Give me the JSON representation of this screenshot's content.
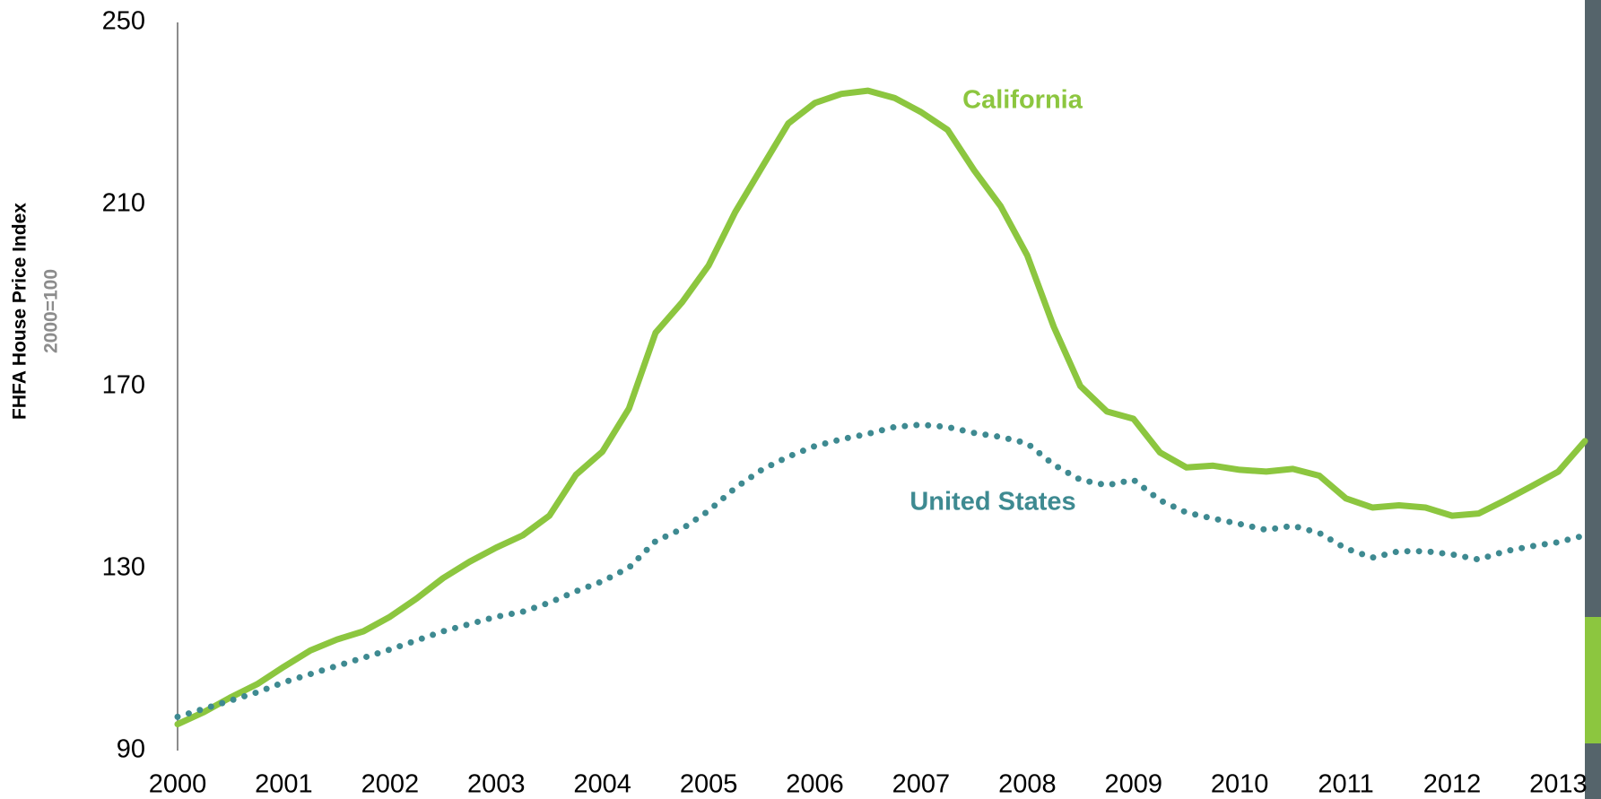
{
  "chart_data": {
    "type": "line",
    "y_label": "FHFA House Price Index",
    "y_sublabel": "2000=100",
    "x": [
      2000,
      2000.25,
      2000.5,
      2000.75,
      2001,
      2001.25,
      2001.5,
      2001.75,
      2002,
      2002.25,
      2002.5,
      2002.75,
      2003,
      2003.25,
      2003.5,
      2003.75,
      2004,
      2004.25,
      2004.5,
      2004.75,
      2005,
      2005.25,
      2005.5,
      2005.75,
      2006,
      2006.25,
      2006.5,
      2006.75,
      2007,
      2007.25,
      2007.5,
      2007.75,
      2008,
      2008.25,
      2008.5,
      2008.75,
      2009,
      2009.25,
      2009.5,
      2009.75,
      2010,
      2010.25,
      2010.5,
      2010.75,
      2011,
      2011.25,
      2011.5,
      2011.75,
      2012,
      2012.25,
      2012.5,
      2012.75,
      2013,
      2013.25
    ],
    "series": [
      {
        "name": "California",
        "color": "#8cc63f",
        "style": "solid",
        "values": [
          95.8,
          98.5,
          101.7,
          104.6,
          108.4,
          112.0,
          114.4,
          116.2,
          119.4,
          123.4,
          127.9,
          131.5,
          134.6,
          137.3,
          141.6,
          150.6,
          155.7,
          165.2,
          181.8,
          188.5,
          196.6,
          208.3,
          218.1,
          227.8,
          232.3,
          234.3,
          235.0,
          233.4,
          230.3,
          226.4,
          217.5,
          209.6,
          198.8,
          183.1,
          170.1,
          164.5,
          162.9,
          155.5,
          152.2,
          152.6,
          151.7,
          151.3,
          151.9,
          150.4,
          145.4,
          143.4,
          143.9,
          143.4,
          141.6,
          142.1,
          145.0,
          148.1,
          151.3,
          158.0
        ]
      },
      {
        "name": "United States",
        "color": "#3e8a91",
        "style": "dotted",
        "values": [
          97.4,
          99.2,
          101.0,
          102.8,
          105.0,
          106.8,
          108.6,
          110.4,
          112.2,
          114.2,
          116.2,
          117.8,
          119.4,
          120.5,
          122.5,
          125.0,
          127.2,
          130.2,
          136.0,
          138.7,
          142.7,
          147.7,
          151.7,
          154.6,
          156.9,
          158.4,
          159.6,
          161.1,
          161.6,
          161.1,
          159.8,
          158.9,
          157.5,
          152.8,
          149.5,
          148.3,
          149.5,
          145.0,
          142.3,
          141.0,
          139.8,
          138.5,
          139.4,
          137.8,
          134.4,
          132.4,
          133.8,
          133.8,
          133.1,
          132.0,
          133.8,
          134.9,
          135.8,
          137.3
        ]
      }
    ],
    "xlim": [
      2000,
      2013.25
    ],
    "xticks": [
      2000,
      2001,
      2002,
      2003,
      2004,
      2005,
      2006,
      2007,
      2008,
      2009,
      2010,
      2011,
      2012,
      2013
    ],
    "ylim": [
      90,
      250
    ],
    "yticks": [
      90,
      130,
      170,
      210,
      250
    ],
    "grid": false
  }
}
